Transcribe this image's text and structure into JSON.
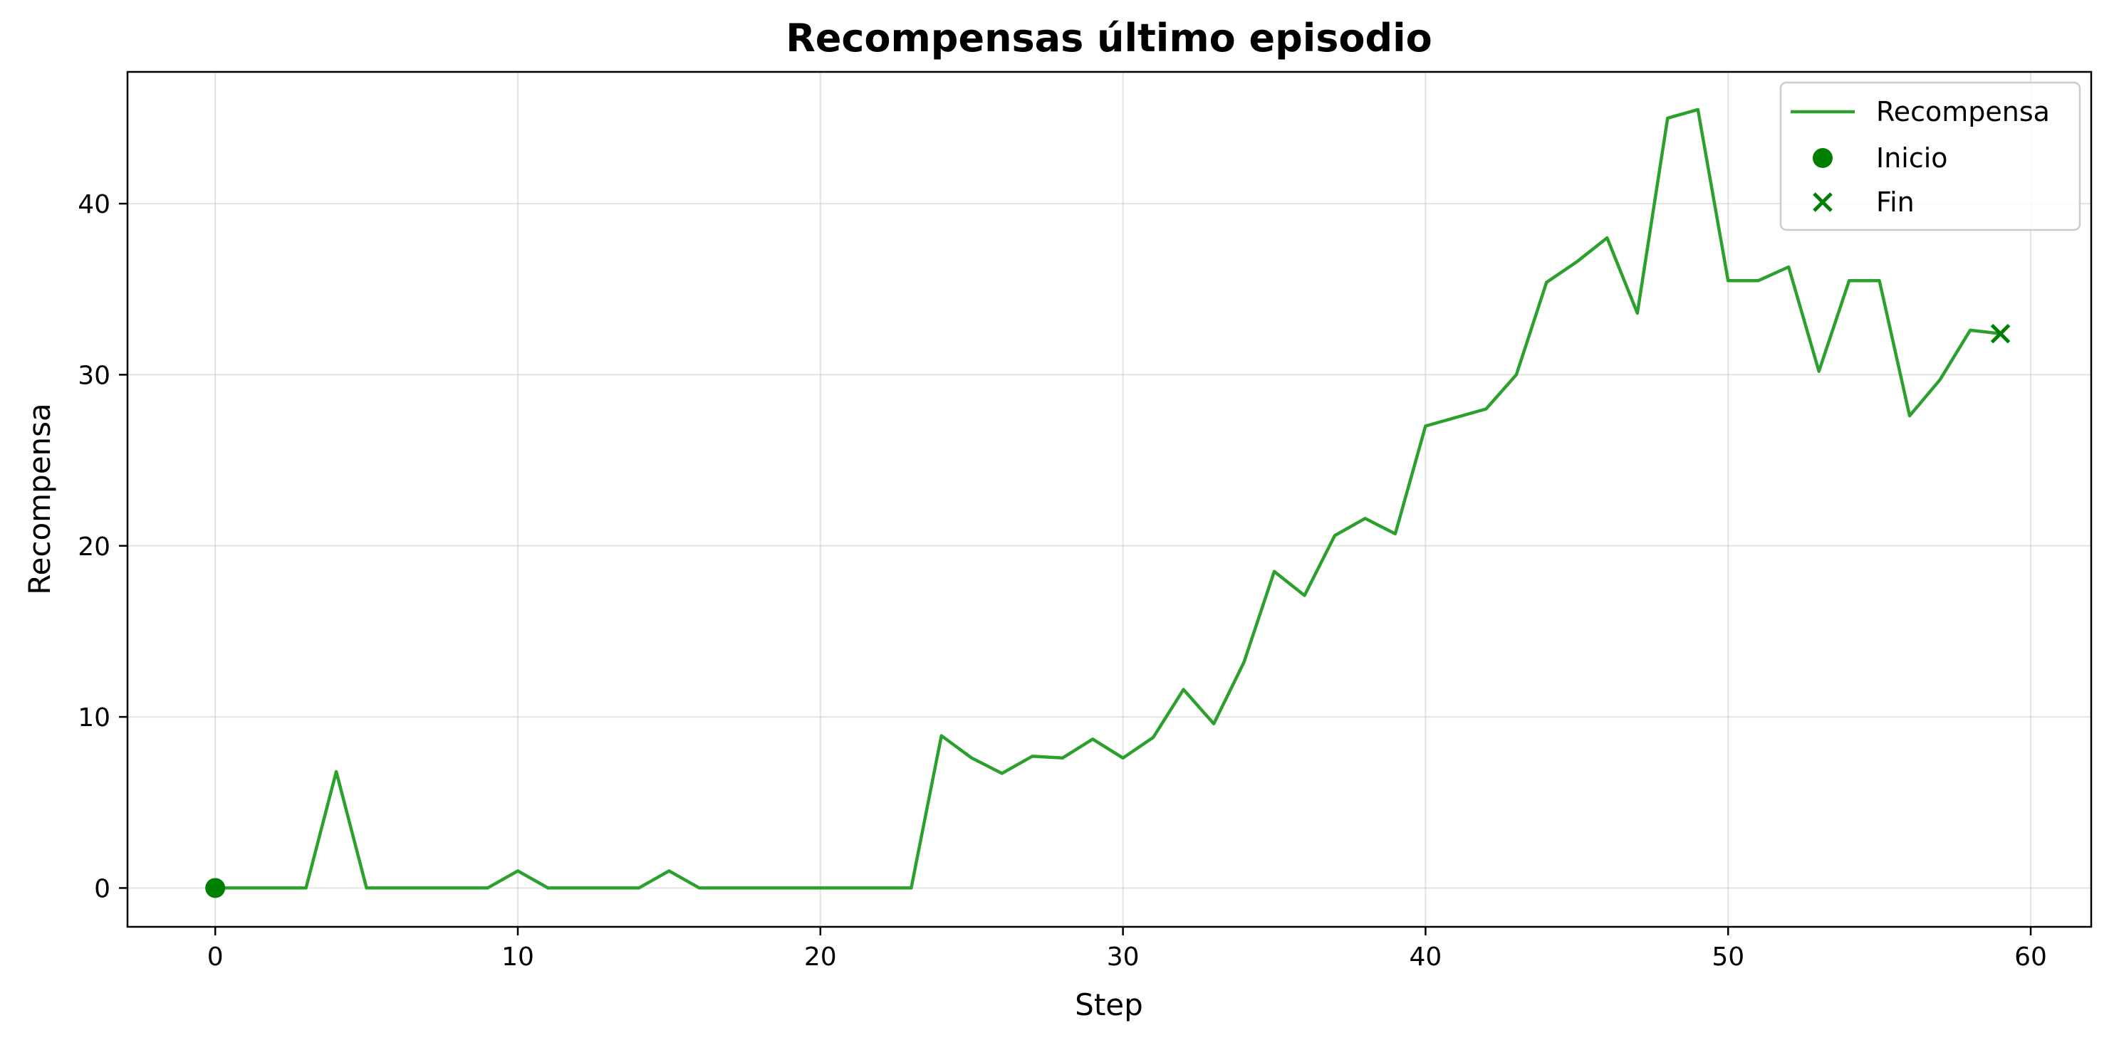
{
  "chart_data": {
    "type": "line",
    "title": "Recompensas último episodio",
    "xlabel": "Step",
    "ylabel": "Recompensa",
    "xlim": [
      -2.9,
      62
    ],
    "ylim": [
      -2.27,
      47.7
    ],
    "xticks": [
      0,
      10,
      20,
      30,
      40,
      50,
      60
    ],
    "yticks": [
      0,
      10,
      20,
      30,
      40
    ],
    "grid": true,
    "legend_position": "top-right",
    "colors": {
      "line": "#2ca02c",
      "start_marker": "#008000",
      "end_marker": "#008000"
    },
    "series": [
      {
        "name": "Recompensa",
        "x": [
          0,
          1,
          2,
          3,
          4,
          5,
          6,
          7,
          8,
          9,
          10,
          11,
          12,
          13,
          14,
          15,
          16,
          17,
          18,
          19,
          20,
          21,
          22,
          23,
          24,
          25,
          26,
          27,
          28,
          29,
          30,
          31,
          32,
          33,
          34,
          35,
          36,
          37,
          38,
          39,
          40,
          41,
          42,
          43,
          44,
          45,
          46,
          47,
          48,
          49,
          50,
          51,
          52,
          53,
          54,
          55,
          56,
          57,
          58,
          59
        ],
        "y": [
          0,
          0,
          0,
          0,
          6.8,
          0,
          0,
          0,
          0,
          0,
          1,
          0,
          0,
          0,
          0,
          1,
          0,
          0,
          0,
          0,
          0,
          0,
          0,
          0,
          8.9,
          7.6,
          6.7,
          7.7,
          7.6,
          8.7,
          7.6,
          8.8,
          11.6,
          9.6,
          13.2,
          18.5,
          17.1,
          20.6,
          21.6,
          20.7,
          27,
          27.5,
          28,
          30,
          35.4,
          36.6,
          38,
          33.6,
          45,
          45.5,
          35.5,
          35.5,
          36.3,
          30.2,
          35.5,
          35.5,
          27.6,
          29.7,
          32.6,
          32.4
        ]
      }
    ],
    "markers": [
      {
        "name": "Inicio",
        "shape": "circle",
        "x": 0,
        "y": 0
      },
      {
        "name": "Fin",
        "shape": "x",
        "x": 59,
        "y": 32.4
      }
    ]
  }
}
